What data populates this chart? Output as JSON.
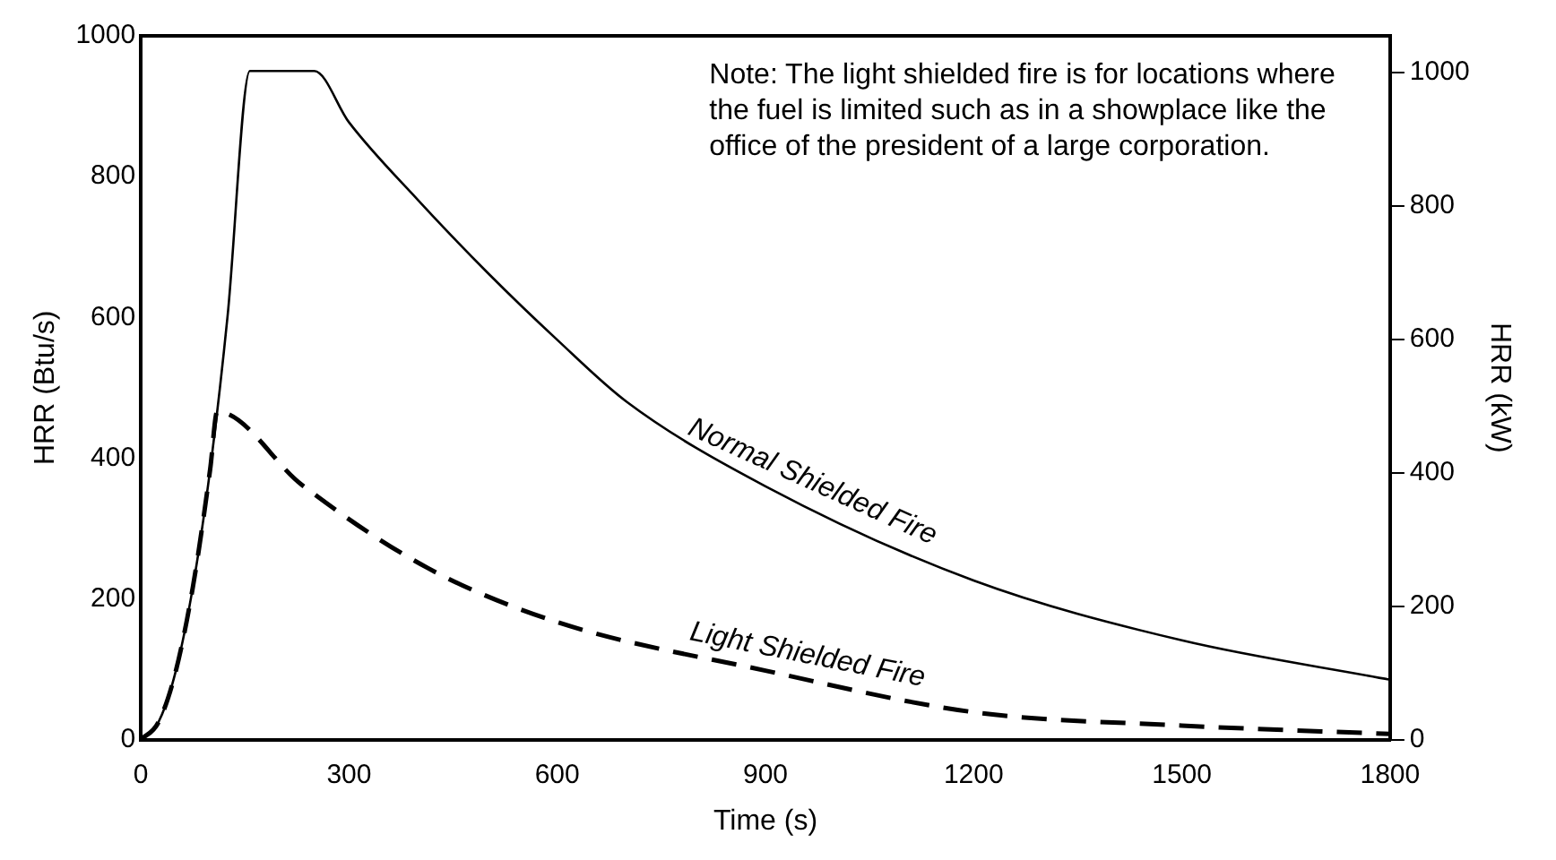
{
  "chart_data": {
    "type": "line",
    "xlabel": "Time (s)",
    "ylabel": "HRR (Btu/s)",
    "y2label": "HRR (kW)",
    "xlim": [
      0,
      1800
    ],
    "xticks": [
      0,
      300,
      600,
      900,
      1200,
      1500,
      1800
    ],
    "ylim": [
      0,
      1000
    ],
    "yticks": [
      0,
      200,
      400,
      600,
      800,
      1000
    ],
    "y2lim": [
      0,
      1055
    ],
    "y2ticks": [
      0,
      200,
      400,
      600,
      800,
      1000
    ],
    "grid": false,
    "legend": false,
    "marker": "none",
    "annotations": [
      "Note: The light shielded fire is for locations where the fuel is limited such as in a showplace like the office of the president of a large corporation."
    ],
    "series": [
      {
        "name": "Normal Shielded Fire",
        "color": "#000000",
        "line_style": "solid",
        "x": [
          0,
          25,
          50,
          75,
          100,
          125,
          157,
          250,
          300,
          400,
          500,
          600,
          700,
          900,
          1200,
          1500,
          1800
        ],
        "values": [
          0,
          24,
          96,
          217,
          385,
          602,
          950,
          950,
          877,
          766,
          663,
          568,
          480,
          360,
          226,
          141,
          85
        ]
      },
      {
        "name": "Light Shielded Fire",
        "color": "#000000",
        "line_style": "dashed",
        "x": [
          0,
          25,
          50,
          75,
          100,
          110,
          232,
          413,
          600,
          900,
          1200,
          1500,
          1800
        ],
        "values": [
          0,
          24,
          96,
          217,
          385,
          466,
          362,
          244,
          167,
          98,
          39,
          20,
          8
        ]
      }
    ]
  }
}
